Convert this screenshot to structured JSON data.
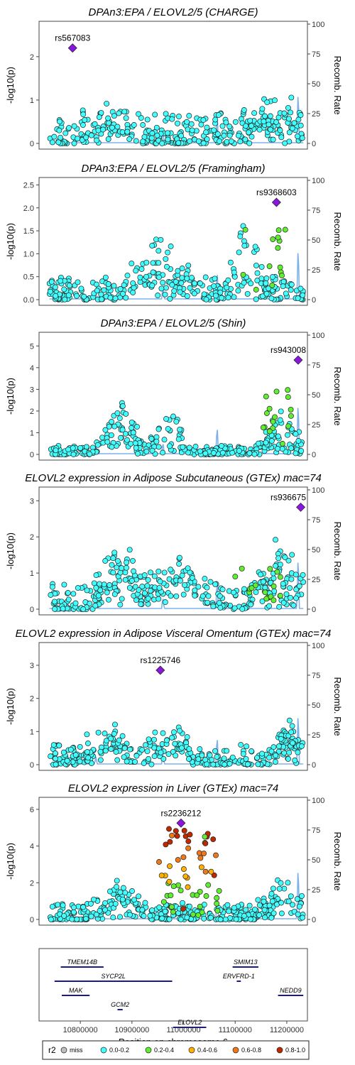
{
  "chart_data": {
    "type": "scatter",
    "x_axis": {
      "label": "Position on chromosome 6",
      "range": [
        10720000,
        11240000
      ],
      "ticks": [
        10800000,
        10900000,
        11000000,
        11100000,
        11200000
      ],
      "tick_labels": [
        "10800000",
        "10900000",
        "11000000",
        "11100000",
        "11200000"
      ]
    },
    "left_axis_label": "-log10(p)",
    "right_axis_label": "Recomb. Rate",
    "right_axis_ticks": [
      0,
      25,
      50,
      75,
      100
    ],
    "right_axis_tick_labels": [
      "0",
      "25",
      "50",
      "75",
      "100"
    ],
    "recomb_line_color": "#7fb2ea",
    "r2_colors": {
      "miss": "#bfbfbf",
      "0.0-0.2": "#40ffff",
      "0.2-0.4": "#60ee30",
      "0.4-0.6": "#ffb000",
      "0.6-0.8": "#f07818",
      "0.8-1.0": "#c02800",
      "lead": "#8a16de"
    },
    "legend": {
      "title": "r2",
      "placement": "bottom",
      "items": [
        {
          "label": "miss",
          "color": "#bfbfbf"
        },
        {
          "label": "0.0-0.2",
          "color": "#40ffff"
        },
        {
          "label": "0.2-0.4",
          "color": "#60ee30"
        },
        {
          "label": "0.4-0.6",
          "color": "#ffb000"
        },
        {
          "label": "0.6-0.8",
          "color": "#f07818"
        },
        {
          "label": "0.8-1.0",
          "color": "#c02800"
        }
      ]
    },
    "panels": [
      {
        "title": "DPAn3:EPA / ELOVL2/5 (CHARGE)",
        "ylim": [
          0,
          2.75
        ],
        "yticks": [
          0,
          1,
          2
        ],
        "ytick_labels": [
          "0",
          "1",
          "2"
        ],
        "lead": {
          "label": "rs567083",
          "x": 10785000,
          "y": 2.2
        },
        "recomb_peaks": [
          {
            "x": 10830000,
            "h": 6
          },
          {
            "x": 10960000,
            "h": 10
          },
          {
            "x": 11065000,
            "h": 25
          },
          {
            "x": 11222000,
            "h": 48
          }
        ],
        "n_points": 330,
        "seed": 11,
        "base_max": 0.7,
        "bumps": [
          {
            "x": 10845000,
            "w": 40000,
            "h": 0.55
          },
          {
            "x": 11175000,
            "w": 50000,
            "h": 0.65
          }
        ],
        "ld_cluster": null
      },
      {
        "title": "DPAn3:EPA / ELOVL2/5 (Framingham)",
        "ylim": [
          0,
          2.6
        ],
        "yticks": [
          0,
          0.5,
          1,
          1.5,
          2,
          2.5
        ],
        "ytick_labels": [
          "0.0",
          "0.5",
          "1.0",
          "1.5",
          "2.0",
          "2.5"
        ],
        "lead": {
          "label": "rs9368603",
          "x": 11180000,
          "y": 2.12
        },
        "recomb_peaks": [
          {
            "x": 10830000,
            "h": 6
          },
          {
            "x": 10960000,
            "h": 10
          },
          {
            "x": 11065000,
            "h": 25
          },
          {
            "x": 11222000,
            "h": 48
          }
        ],
        "n_points": 320,
        "seed": 23,
        "base_max": 0.5,
        "bumps": [
          {
            "x": 10960000,
            "w": 60000,
            "h": 0.9
          },
          {
            "x": 11120000,
            "w": 30000,
            "h": 1.4
          }
        ],
        "ld_cluster": {
          "x": 11160000,
          "w": 45000,
          "n": 14,
          "color": "0.2-0.4",
          "ymax": 1.7
        }
      },
      {
        "title": "DPAn3:EPA / ELOVL2/5 (Shin)",
        "ylim": [
          0,
          5.5
        ],
        "yticks": [
          0,
          1,
          2,
          3,
          4,
          5
        ],
        "ytick_labels": [
          "0",
          "1",
          "2",
          "3",
          "4",
          "5"
        ],
        "lead": {
          "label": "rs943008",
          "x": 11222000,
          "y": 4.35
        },
        "recomb_peaks": [
          {
            "x": 10830000,
            "h": 6
          },
          {
            "x": 10960000,
            "h": 10
          },
          {
            "x": 11065000,
            "h": 25
          },
          {
            "x": 11222000,
            "h": 48
          }
        ],
        "n_points": 330,
        "seed": 37,
        "base_max": 0.4,
        "bumps": [
          {
            "x": 10880000,
            "w": 35000,
            "h": 2.2
          },
          {
            "x": 10970000,
            "w": 30000,
            "h": 2.0
          },
          {
            "x": 11190000,
            "w": 35000,
            "h": 1.8
          }
        ],
        "ld_cluster": {
          "x": 11185000,
          "w": 40000,
          "n": 16,
          "color": "0.2-0.4",
          "ymax": 3.0
        }
      },
      {
        "title": "ELOVL2 expression in Adipose Subcutaneous (GTEx) mac=74",
        "ylim": [
          0,
          3.3
        ],
        "yticks": [
          0,
          1,
          2,
          3
        ],
        "ytick_labels": [
          "0",
          "1",
          "2",
          "3"
        ],
        "lead": {
          "label": "rs936675",
          "x": 11227000,
          "y": 2.82
        },
        "recomb_peaks": [
          {
            "x": 10830000,
            "h": 6
          },
          {
            "x": 10960000,
            "h": 10
          },
          {
            "x": 11065000,
            "h": 25
          },
          {
            "x": 11222000,
            "h": 48
          }
        ],
        "n_points": 340,
        "seed": 51,
        "base_max": 0.7,
        "bumps": [
          {
            "x": 10880000,
            "w": 40000,
            "h": 1.4
          },
          {
            "x": 10990000,
            "w": 50000,
            "h": 1.2
          },
          {
            "x": 11190000,
            "w": 45000,
            "h": 1.4
          }
        ],
        "ld_cluster": {
          "x": 11150000,
          "w": 50000,
          "n": 16,
          "color": "0.2-0.4",
          "ymax": 1.2
        }
      },
      {
        "title": "ELOVL2 expression in Adipose Visceral Omentum (GTEx) mac=74",
        "ylim": [
          0,
          3.6
        ],
        "yticks": [
          0,
          1,
          2,
          3
        ],
        "ytick_labels": [
          "0",
          "1",
          "2",
          "3"
        ],
        "lead": {
          "label": "rs1225746",
          "x": 10955000,
          "y": 2.85
        },
        "recomb_peaks": [
          {
            "x": 10830000,
            "h": 6
          },
          {
            "x": 10960000,
            "h": 10
          },
          {
            "x": 11065000,
            "h": 25
          },
          {
            "x": 11222000,
            "h": 48
          }
        ],
        "n_points": 330,
        "seed": 67,
        "base_max": 0.6,
        "bumps": [
          {
            "x": 10850000,
            "w": 40000,
            "h": 0.9
          },
          {
            "x": 10975000,
            "w": 40000,
            "h": 0.8
          },
          {
            "x": 11200000,
            "w": 30000,
            "h": 1.0
          }
        ],
        "ld_cluster": null
      },
      {
        "title": "ELOVL2 expression in Liver (GTEx) mac=74",
        "ylim": [
          0,
          6.5
        ],
        "yticks": [
          0,
          2,
          4,
          6
        ],
        "ytick_labels": [
          "0",
          "2",
          "4",
          "6"
        ],
        "lead": {
          "label": "rs2236212",
          "x": 10995000,
          "y": 5.25
        },
        "recomb_peaks": [
          {
            "x": 10830000,
            "h": 6
          },
          {
            "x": 10960000,
            "h": 10
          },
          {
            "x": 11065000,
            "h": 25
          },
          {
            "x": 11222000,
            "h": 48
          }
        ],
        "n_points": 340,
        "seed": 83,
        "base_max": 0.9,
        "bumps": [
          {
            "x": 10880000,
            "w": 40000,
            "h": 1.5
          },
          {
            "x": 11200000,
            "w": 40000,
            "h": 2.0
          }
        ],
        "ld_cluster": {
          "x": 11010000,
          "w": 60000,
          "n": 60,
          "color": "mixed",
          "ymax": 5.0
        }
      }
    ],
    "genes": [
      {
        "name": "TMEM14B",
        "start": 10762000,
        "end": 10845000,
        "row": 0
      },
      {
        "name": "SMIM13",
        "start": 11095000,
        "end": 11145000,
        "row": 0
      },
      {
        "name": "SYCP2L",
        "start": 10750000,
        "end": 10978000,
        "row": 1
      },
      {
        "name": "ERVFRD-1",
        "start": 11103000,
        "end": 11111000,
        "row": 1
      },
      {
        "name": "MAK",
        "start": 10764000,
        "end": 10818000,
        "row": 2
      },
      {
        "name": "NEDD9",
        "start": 11183000,
        "end": 11232000,
        "row": 2
      },
      {
        "name": "GCM2",
        "start": 10872000,
        "end": 10882000,
        "row": 3
      },
      {
        "name": "ELOVL2",
        "start": 10980000,
        "end": 11044000,
        "row": 4
      }
    ]
  }
}
